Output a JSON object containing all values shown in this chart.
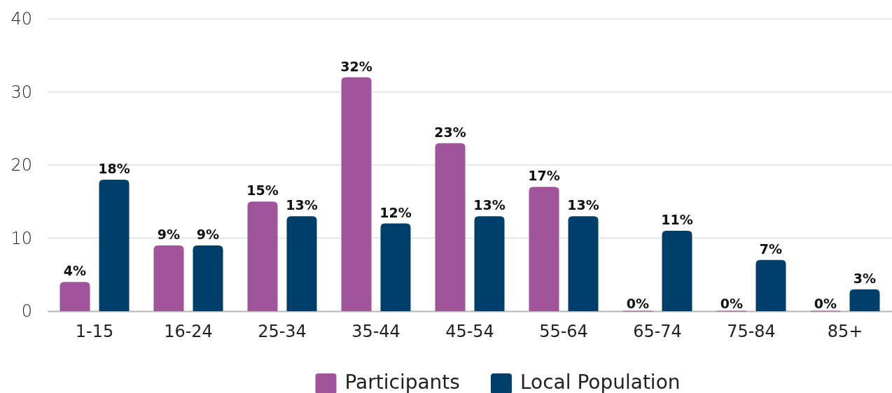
{
  "chart_data": {
    "type": "bar",
    "categories": [
      "1-15",
      "16-24",
      "25-34",
      "35-44",
      "45-54",
      "55-64",
      "65-74",
      "75-84",
      "85+"
    ],
    "series": [
      {
        "name": "Participants",
        "color": "#a0559b",
        "values": [
          4,
          9,
          15,
          32,
          23,
          17,
          0,
          0,
          0
        ],
        "value_labels": [
          "4%",
          "9%",
          "15%",
          "32%",
          "23%",
          "17%",
          "0%",
          "0%",
          "0%"
        ]
      },
      {
        "name": "Local Population",
        "color": "#003f6b",
        "values": [
          18,
          9,
          13,
          12,
          13,
          13,
          11,
          7,
          3
        ],
        "value_labels": [
          "18%",
          "9%",
          "13%",
          "12%",
          "13%",
          "13%",
          "11%",
          "7%",
          "3%"
        ]
      }
    ],
    "ylim": [
      0,
      40
    ],
    "yticks": [
      0,
      10,
      20,
      30,
      40
    ],
    "grid": "y",
    "legend": "bottom"
  }
}
